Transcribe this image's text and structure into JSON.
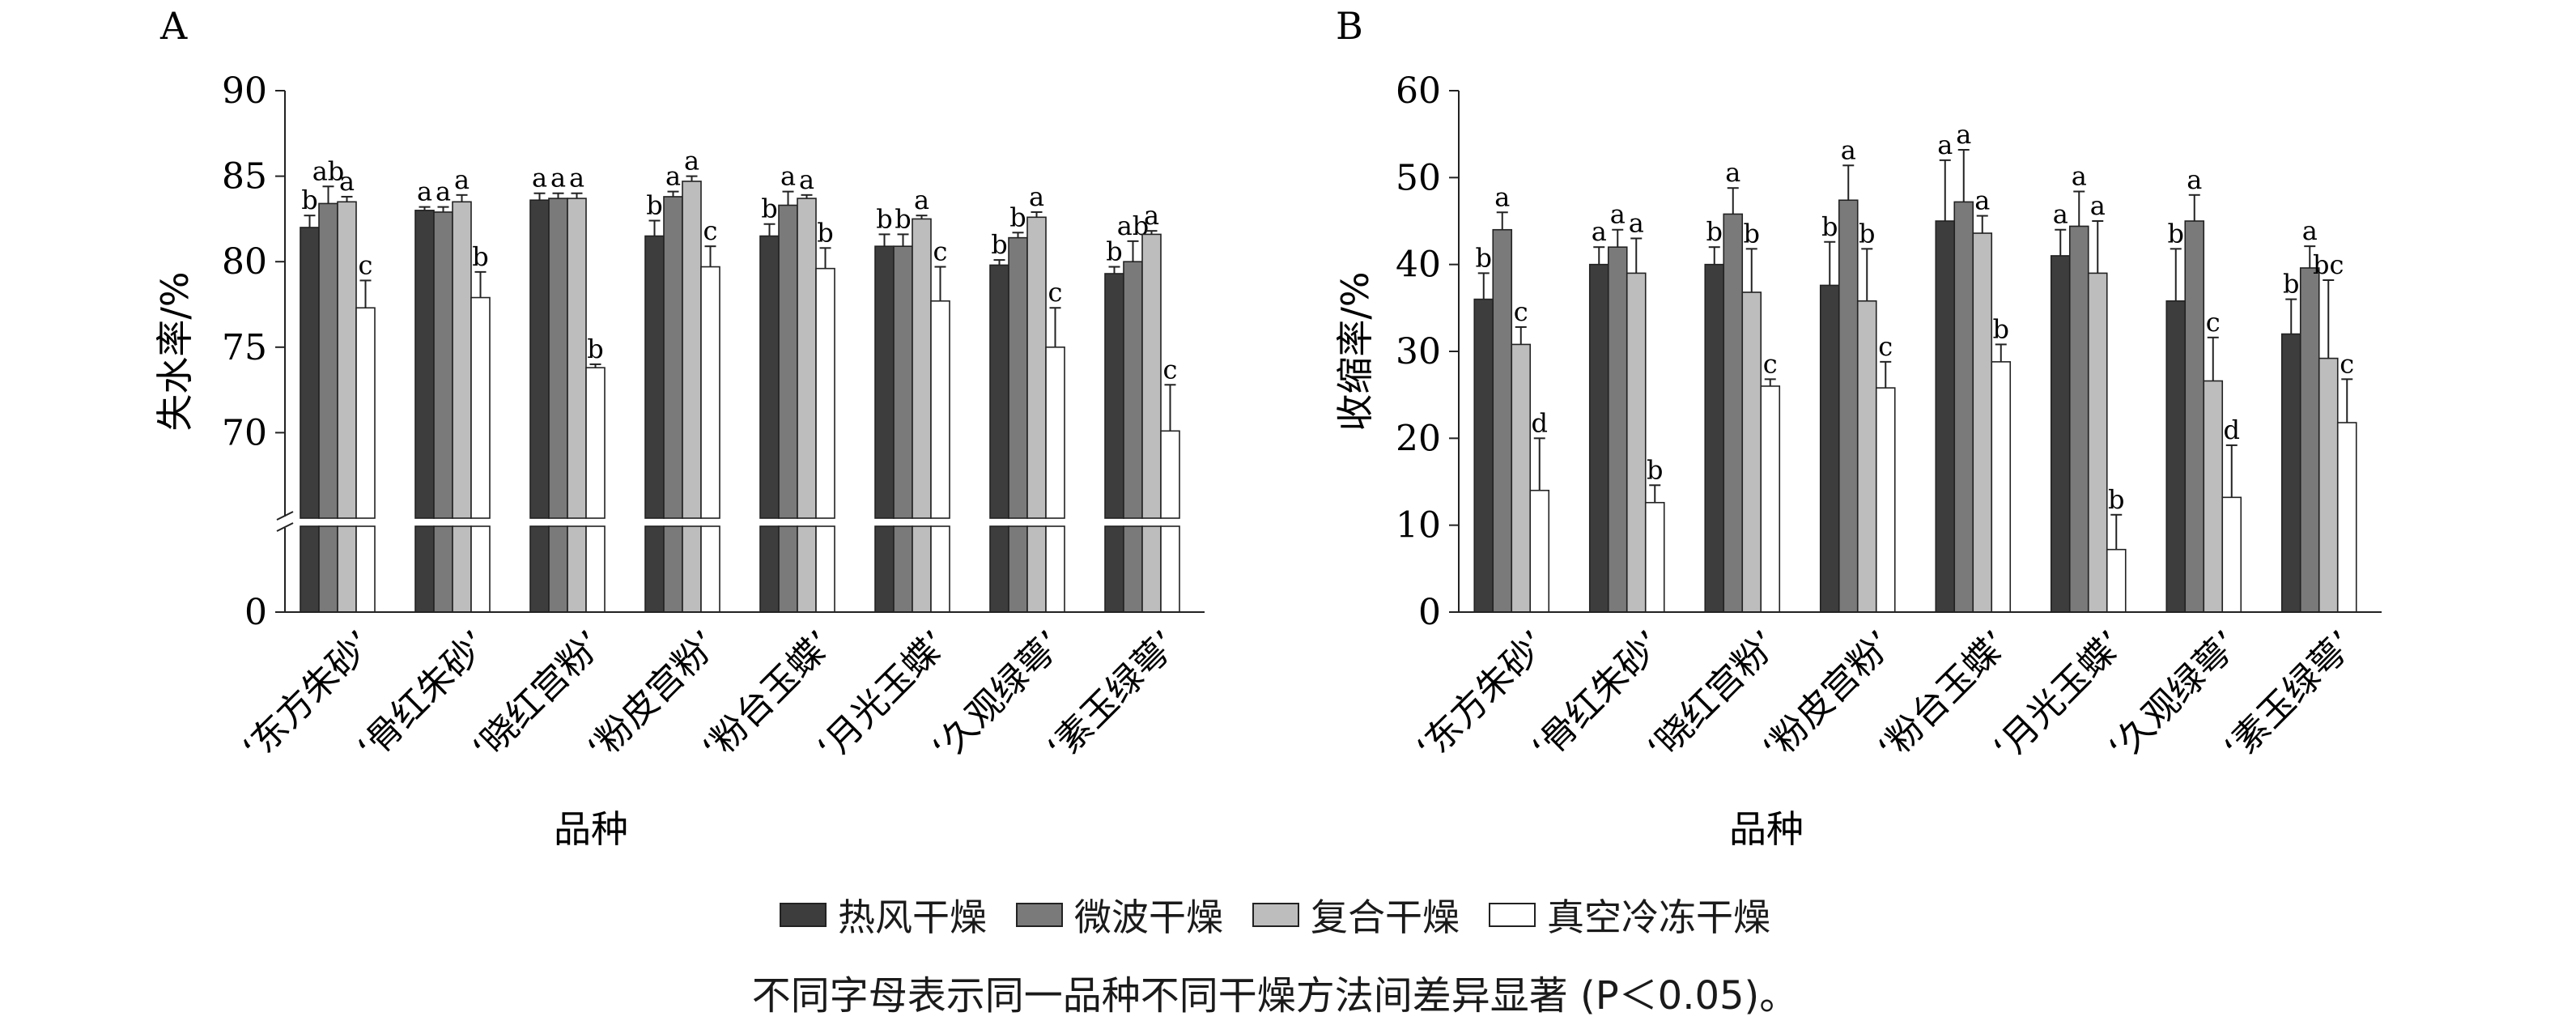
{
  "panel_labels": [
    "A",
    "B"
  ],
  "legend_items": [
    {
      "label": "热风干燥",
      "color": "#3d3d3d"
    },
    {
      "label": "微波干燥",
      "color": "#7a7a7a"
    },
    {
      "label": "复合干燥",
      "color": "#bdbdbd"
    },
    {
      "label": "真空冷冻干燥",
      "color": "#ffffff"
    }
  ],
  "caption": "不同字母表示同一品种不同干燥方法间差异显著 (P＜0.05)。",
  "chart_data": [
    {
      "panel": "A",
      "type": "bar",
      "ylabel": "失水率/%",
      "xlabel": "品种",
      "ylim": [
        0,
        90
      ],
      "axis_break": true,
      "yticks": [
        0,
        70,
        75,
        80,
        85,
        90
      ],
      "categories": [
        "‘东方朱砂’",
        "‘骨红朱砂’",
        "‘晓红宫粉’",
        "‘粉皮宫粉’",
        "‘粉台玉蝶’",
        "‘月光玉蝶’",
        "‘久观绿萼’",
        "‘素玉绿萼’"
      ],
      "series": [
        {
          "name": "热风干燥",
          "values": [
            82.0,
            83.0,
            83.6,
            81.5,
            81.5,
            80.9,
            79.8,
            79.3
          ],
          "errors": [
            0.7,
            0.2,
            0.4,
            0.9,
            0.7,
            0.7,
            0.3,
            0.4
          ],
          "letters": [
            "b",
            "a",
            "a",
            "b",
            "b",
            "b",
            "b",
            "b"
          ]
        },
        {
          "name": "微波干燥",
          "values": [
            83.4,
            82.9,
            83.7,
            83.8,
            83.3,
            80.9,
            81.4,
            80.0
          ],
          "errors": [
            1.0,
            0.3,
            0.3,
            0.3,
            0.8,
            0.7,
            0.3,
            1.2
          ],
          "letters": [
            "ab",
            "a",
            "a",
            "a",
            "a",
            "b",
            "b",
            "ab"
          ]
        },
        {
          "name": "复合干燥",
          "values": [
            83.5,
            83.5,
            83.7,
            84.7,
            83.7,
            82.5,
            82.6,
            81.6
          ],
          "errors": [
            0.3,
            0.4,
            0.3,
            0.3,
            0.2,
            0.2,
            0.3,
            0.2
          ],
          "letters": [
            "a",
            "a",
            "a",
            "a",
            "a",
            "a",
            "a",
            "a"
          ]
        },
        {
          "name": "真空冷冻干燥",
          "values": [
            77.3,
            77.9,
            73.8,
            79.7,
            79.6,
            77.7,
            75.0,
            70.1
          ],
          "errors": [
            1.6,
            1.5,
            0.2,
            1.2,
            1.2,
            2.0,
            2.3,
            2.7
          ],
          "letters": [
            "c",
            "b",
            "b",
            "c",
            "b",
            "c",
            "c",
            "c"
          ]
        }
      ]
    },
    {
      "panel": "B",
      "type": "bar",
      "ylabel": "收缩率/%",
      "xlabel": "品种",
      "ylim": [
        0,
        60
      ],
      "axis_break": false,
      "yticks": [
        0,
        10,
        20,
        30,
        40,
        50,
        60
      ],
      "categories": [
        "‘东方朱砂’",
        "‘骨红朱砂’",
        "‘晓红宫粉’",
        "‘粉皮宫粉’",
        "‘粉台玉蝶’",
        "‘月光玉蝶’",
        "‘久观绿萼’",
        "‘素玉绿萼’"
      ],
      "series": [
        {
          "name": "热风干燥",
          "values": [
            36.0,
            40.0,
            40.0,
            37.6,
            45.0,
            41.0,
            35.8,
            32.0
          ],
          "errors": [
            3.0,
            2.0,
            2.0,
            5.0,
            7.0,
            3.0,
            6.0,
            4.0
          ],
          "letters": [
            "b",
            "a",
            "b",
            "b",
            "a",
            "a",
            "b",
            "b"
          ]
        },
        {
          "name": "微波干燥",
          "values": [
            44.0,
            42.0,
            45.8,
            47.4,
            47.2,
            44.4,
            45.0,
            39.6
          ],
          "errors": [
            2.0,
            2.0,
            3.0,
            4.0,
            6.0,
            4.0,
            3.0,
            2.5
          ],
          "letters": [
            "a",
            "a",
            "a",
            "a",
            "a",
            "a",
            "a",
            "a"
          ]
        },
        {
          "name": "复合干燥",
          "values": [
            30.8,
            39.0,
            36.8,
            35.8,
            43.6,
            39.0,
            26.6,
            29.2
          ],
          "errors": [
            2.0,
            4.0,
            5.0,
            6.0,
            2.0,
            6.0,
            5.0,
            9.0
          ],
          "letters": [
            "c",
            "a",
            "b",
            "b",
            "a",
            "a",
            "c",
            "bc"
          ]
        },
        {
          "name": "真空冷冻干燥",
          "values": [
            14.0,
            12.6,
            26.0,
            25.8,
            28.8,
            7.2,
            13.2,
            21.8
          ],
          "errors": [
            6.0,
            2.0,
            0.8,
            3.0,
            2.0,
            4.0,
            6.0,
            5.0
          ],
          "letters": [
            "d",
            "b",
            "c",
            "c",
            "b",
            "b",
            "d",
            "c"
          ]
        }
      ]
    }
  ]
}
